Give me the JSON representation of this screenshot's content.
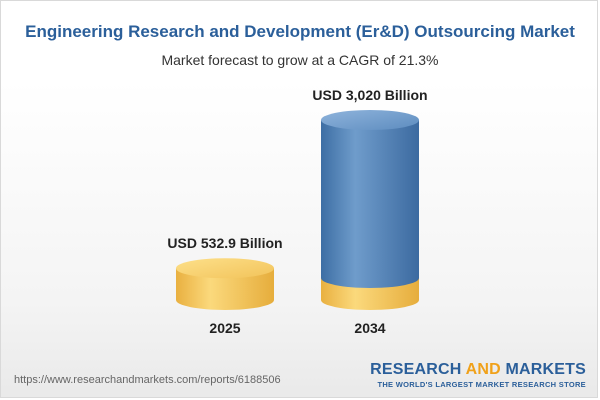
{
  "header": {
    "title": "Engineering Research and Development (Er&D) Outsourcing Market",
    "subtitle": "Market forecast to grow at a CAGR of 21.3%"
  },
  "chart_data": {
    "type": "bar",
    "categories": [
      "2025",
      "2034"
    ],
    "values": [
      532.9,
      3020
    ],
    "value_labels": [
      "USD 532.9 Billion",
      "USD 3,020 Billion"
    ],
    "unit": "USD Billion",
    "grid": false,
    "legend": "none"
  },
  "colors": {
    "title": "#2b5f9a",
    "base_yellow": "#f4c65a",
    "bar_blue": "#4f7fb2",
    "logo_accent": "#f0a11a"
  },
  "footer": {
    "url": "https://www.researchandmarkets.com/reports/6188506"
  },
  "logo": {
    "word1": "RESEARCH",
    "word2": "AND",
    "word3": "MARKETS",
    "tagline": "THE WORLD'S LARGEST MARKET RESEARCH STORE"
  }
}
